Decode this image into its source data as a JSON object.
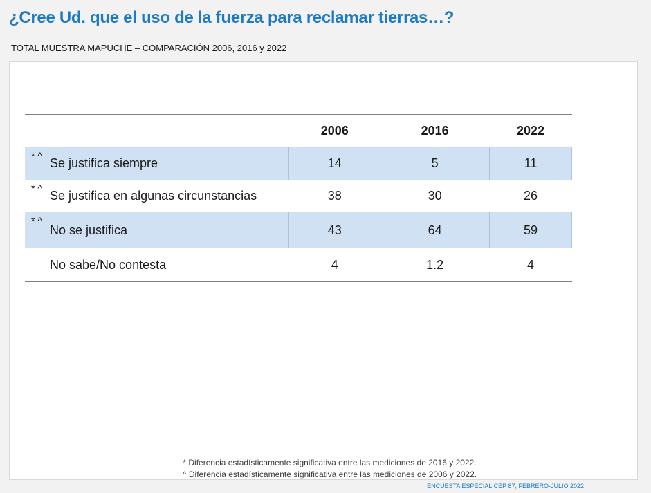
{
  "title": "¿Cree Ud. que el uso de la fuerza para reclamar tierras…?",
  "subtitle": "TOTAL MUESTRA MAPUCHE – COMPARACIÓN 2006, 2016 y 2022",
  "table": {
    "headers": [
      "",
      "2006",
      "2016",
      "2022"
    ],
    "rows": [
      {
        "marks": "* ^",
        "label": "Se justifica siempre",
        "v2006": "14",
        "v2016": "5",
        "v2022": "11"
      },
      {
        "marks": "* ^",
        "label": "Se justifica en algunas circunstancias",
        "v2006": "38",
        "v2016": "30",
        "v2022": "26"
      },
      {
        "marks": "* ^",
        "label": "No se justifica",
        "v2006": "43",
        "v2016": "64",
        "v2022": "59"
      },
      {
        "marks": "",
        "label": "No sabe/No contesta",
        "v2006": "4",
        "v2016": "1.2",
        "v2022": "4"
      }
    ]
  },
  "notes": {
    "note1": "* Diferencia estadísticamente significativa entre las mediciones de 2016 y 2022.",
    "note2": "^ Diferencia estadísticamente significativa entre las mediciones de 2006 y 2022."
  },
  "source": "ENCUESTA ESPECIAL CEP 87, FEBRERO-JULIO 2022",
  "colors": {
    "accent": "#1f7ac4",
    "row_highlight": "#cfe1f2"
  }
}
